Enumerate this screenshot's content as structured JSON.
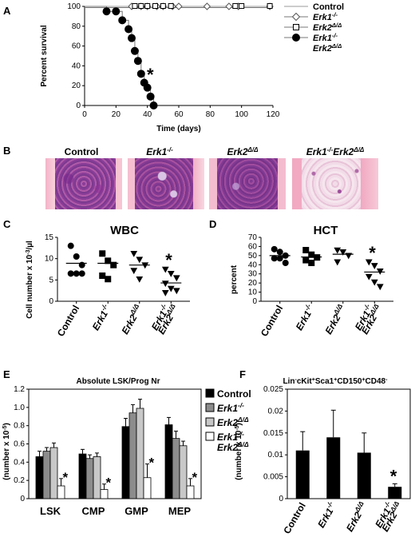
{
  "panels": {
    "A": {
      "letter": "A",
      "chart_data": {
        "type": "line",
        "xlabel": "Time (days)",
        "ylabel": "Percent survival",
        "xlim": [
          0,
          120
        ],
        "ylim": [
          0,
          100
        ],
        "xticks": [
          0,
          20,
          40,
          60,
          80,
          100,
          120
        ],
        "yticks": [
          0,
          20,
          40,
          60,
          80,
          100
        ],
        "annotation": "*",
        "legend_position": "right",
        "series": [
          {
            "name": "Control",
            "marker": "none",
            "x": [
              0,
              120
            ],
            "y": [
              100,
              100
            ]
          },
          {
            "name": "Erk1-/-",
            "marker": "diamond",
            "x": [
              30,
              36,
              40,
              46,
              50,
              56,
              60,
              78,
              92,
              98,
              118
            ],
            "y": [
              100,
              100,
              100,
              100,
              100,
              100,
              100,
              100,
              100,
              100,
              100
            ]
          },
          {
            "name": "Erk2Δ/Δ",
            "marker": "square",
            "x": [
              32,
              36,
              40,
              45,
              50,
              55,
              96,
              100,
              118
            ],
            "y": [
              100,
              100,
              100,
              100,
              100,
              100,
              100,
              100,
              100
            ]
          },
          {
            "name": "Erk1-/- Erk2Δ/Δ",
            "marker": "circle",
            "x": [
              0,
              14,
              20,
              24,
              28,
              30,
              32,
              34,
              36,
              38,
              40,
              42,
              44
            ],
            "y": [
              100,
              95,
              95,
              86,
              77,
              68,
              55,
              45,
              32,
              23,
              18,
              9,
              0
            ]
          }
        ]
      }
    },
    "B": {
      "letter": "B",
      "labels": [
        "Control",
        "Erk1-/-",
        "Erk2Δ/Δ",
        "Erk1-/-Erk2Δ/Δ"
      ]
    },
    "C": {
      "letter": "C",
      "chart_data": {
        "type": "scatter",
        "title": "WBC",
        "ylabel": "Cell number x 10-3/µl",
        "ylim": [
          0,
          15
        ],
        "yticks": [
          0,
          5,
          10,
          15
        ],
        "categories": [
          "Control",
          "Erk1-/-",
          "Erk2Δ/Δ",
          "Erk1-/- Erk2Δ/Δ"
        ],
        "markers": [
          "circle",
          "square",
          "triangle-down",
          "triangle-down"
        ],
        "points": [
          [
            13.0,
            10.5,
            8.5,
            6.5,
            6.5,
            6.5
          ],
          [
            11.2,
            9.5,
            8.5,
            6.0,
            5.2
          ],
          [
            11.2,
            9.8,
            8.5,
            7.2,
            5.2
          ],
          [
            7.5,
            6.5,
            5.5,
            4.2,
            3.0,
            2.5,
            2.0
          ]
        ],
        "means": [
          8.9,
          8.9,
          8.5,
          4.3
        ],
        "annotation": "*"
      }
    },
    "D": {
      "letter": "D",
      "chart_data": {
        "type": "scatter",
        "title": "HCT",
        "ylabel": "percent",
        "ylim": [
          0,
          70
        ],
        "yticks": [
          0,
          10,
          20,
          30,
          40,
          50,
          60,
          70
        ],
        "categories": [
          "Control",
          "Erk1-/-",
          "Erk2Δ/Δ",
          "Erk1-/- Erk2Δ/Δ"
        ],
        "markers": [
          "circle",
          "square",
          "triangle-down",
          "triangle-down"
        ],
        "points": [
          [
            57,
            54,
            50,
            47,
            47,
            42
          ],
          [
            56,
            51,
            48,
            45,
            42
          ],
          [
            56,
            54,
            50,
            43
          ],
          [
            43,
            39,
            33,
            27,
            21,
            16
          ]
        ],
        "means": [
          50,
          48.5,
          51.5,
          32
        ],
        "annotation": "*"
      }
    },
    "E": {
      "letter": "E",
      "chart_data": {
        "type": "bar",
        "title": "Absolute LSK/Prog Nr",
        "ylabel": "(number x 10-5)",
        "ylim": [
          0,
          1.2
        ],
        "yticks": [
          0,
          0.2,
          0.4,
          0.6,
          0.8,
          1.0,
          1.2
        ],
        "categories": [
          "LSK",
          "CMP",
          "GMP",
          "MEP"
        ],
        "series": [
          {
            "name": "Control",
            "color": "#000000",
            "values": [
              0.46,
              0.49,
              0.79,
              0.81
            ],
            "errors": [
              0.06,
              0.05,
              0.09,
              0.08
            ]
          },
          {
            "name": "Erk1-/-",
            "color": "#8c8c8c",
            "values": [
              0.52,
              0.44,
              0.94,
              0.66
            ],
            "errors": [
              0.04,
              0.04,
              0.09,
              0.08
            ]
          },
          {
            "name": "Erk2Δ/Δ",
            "color": "#c8c8c8",
            "values": [
              0.56,
              0.46,
              0.99,
              0.58
            ],
            "errors": [
              0.05,
              0.04,
              0.1,
              0.05
            ]
          },
          {
            "name": "Erk1-/- Erk2Δ/Δ",
            "color": "#ffffff",
            "values": [
              0.14,
              0.1,
              0.23,
              0.14
            ],
            "errors": [
              0.08,
              0.06,
              0.15,
              0.08
            ]
          }
        ],
        "annotation": "*",
        "legend_position": "right"
      }
    },
    "F": {
      "letter": "F",
      "chart_data": {
        "type": "bar",
        "title": "Lin-cKit+Sca1+CD150+CD48-",
        "ylabel": "(number x 10-5)",
        "ylim": [
          0,
          0.025
        ],
        "yticks": [
          "0",
          "0.005",
          "0.01",
          "0.015",
          "0.02",
          "0.025"
        ],
        "categories": [
          "Control",
          "Erk1-/-",
          "Erk2Δ/Δ",
          "Erk1-/- Erk2Δ/Δ"
        ],
        "values": [
          0.011,
          0.014,
          0.0105,
          0.0027
        ],
        "errors": [
          0.0043,
          0.0062,
          0.0045,
          0.0007
        ],
        "color": "#000000",
        "annotation": "*"
      }
    }
  }
}
